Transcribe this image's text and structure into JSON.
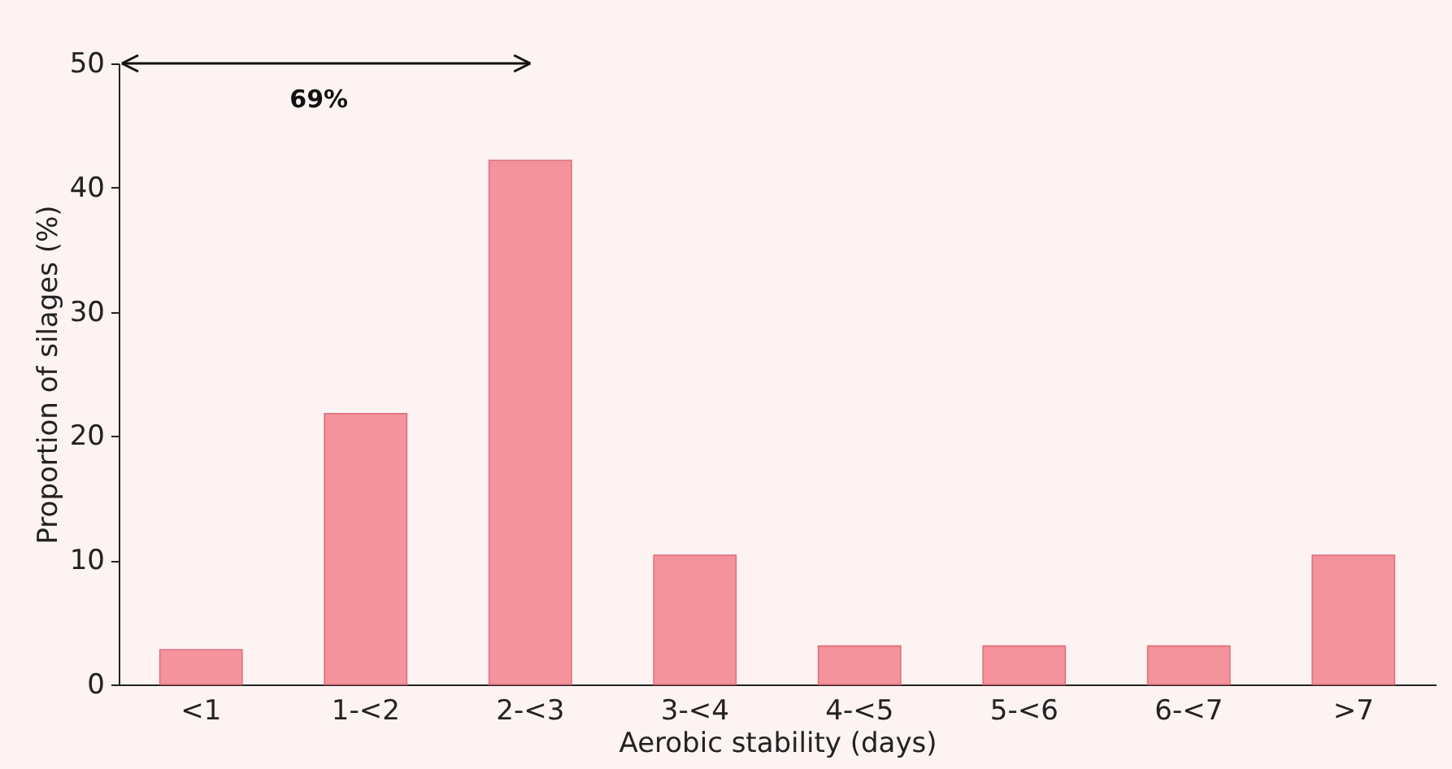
{
  "chart_data": {
    "type": "bar",
    "xlabel": "Aerobic stability (days)",
    "ylabel": "Proportion of silages (%)",
    "categories": [
      "<1",
      "1-<2",
      "2-<3",
      "3-<4",
      "4-<5",
      "5-<6",
      "6-<7",
      ">7"
    ],
    "values": [
      2.8,
      21.8,
      42.2,
      10.4,
      3.1,
      3.1,
      3.1,
      10.4
    ],
    "color": "#f4939c",
    "ylim": [
      0,
      50
    ],
    "yticks": [
      0,
      10,
      20,
      30,
      40,
      50
    ],
    "grid": false,
    "annotations": [
      "69%"
    ]
  }
}
